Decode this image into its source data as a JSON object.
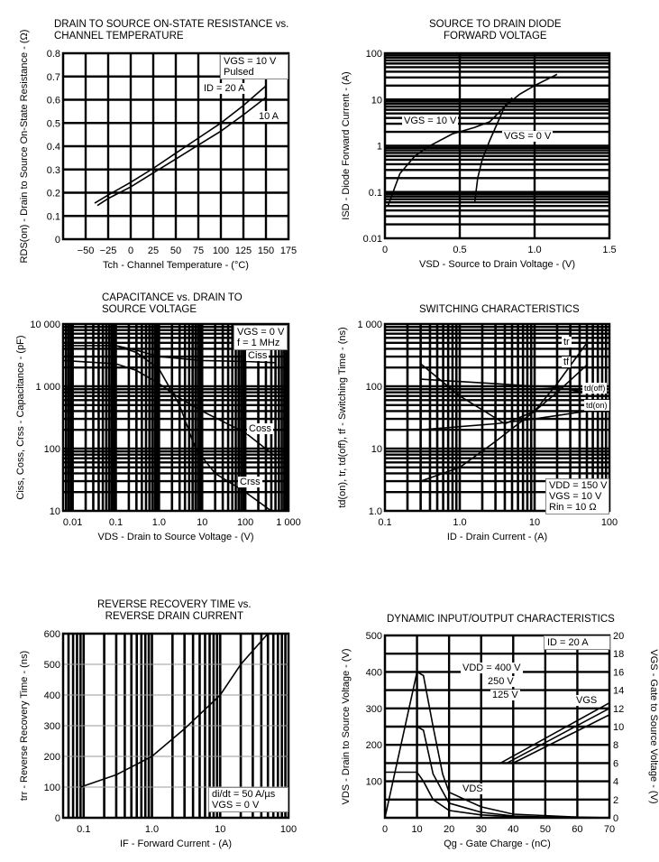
{
  "chart_data": [
    {
      "type": "line",
      "title": "DRAIN TO SOURCE ON-STATE RESISTANCE vs.\nCHANNEL TEMPERATURE",
      "xlabel": "Tch - Channel Temperature - (°C)",
      "ylabel": "RDS(on) - Drain to Source On-State Resistance - (Ω)",
      "xscale": "linear",
      "yscale": "linear",
      "xlim": [
        -75,
        175
      ],
      "ylim": [
        0,
        0.8
      ],
      "xticks": [
        -50,
        -25,
        0,
        25,
        50,
        75,
        100,
        125,
        150,
        175
      ],
      "xtick_labels": [
        "−50",
        "−25",
        "0",
        "25",
        "50",
        "75",
        "100",
        "125",
        "150",
        "175"
      ],
      "yticks": [
        0,
        0.1,
        0.2,
        0.3,
        0.4,
        0.5,
        0.6,
        0.7,
        0.8
      ],
      "ytick_labels": [
        "0",
        "0.1",
        "0.2",
        "0.3",
        "0.4",
        "0.5",
        "0.6",
        "0.7",
        "0.8"
      ],
      "grid": true,
      "annotations": [
        "VGS = 10 V\nPulsed",
        "ID = 20 A",
        "10 A"
      ],
      "series": [
        {
          "name": "ID = 20 A",
          "x": [
            -40,
            -25,
            0,
            25,
            50,
            75,
            100,
            125,
            150
          ],
          "y": [
            0.155,
            0.19,
            0.245,
            0.305,
            0.37,
            0.435,
            0.5,
            0.575,
            0.66
          ]
        },
        {
          "name": "10 A",
          "x": [
            -37,
            -25,
            0,
            25,
            50,
            75,
            100,
            125,
            150
          ],
          "y": [
            0.145,
            0.175,
            0.225,
            0.285,
            0.345,
            0.405,
            0.465,
            0.535,
            0.61
          ]
        }
      ]
    },
    {
      "type": "line",
      "title": "SOURCE TO DRAIN DIODE\nFORWARD VOLTAGE",
      "xlabel": "VSD - Source to Drain Voltage - (V)",
      "ylabel": "ISD - Diode Forward Current - (A)",
      "xscale": "linear",
      "yscale": "log",
      "xlim": [
        0,
        1.5
      ],
      "ylim": [
        0.01,
        100
      ],
      "xticks": [
        0,
        0.5,
        1.0,
        1.5
      ],
      "xtick_labels": [
        "0",
        "0.5",
        "1.0",
        "1.5"
      ],
      "yticks": [
        0.01,
        0.1,
        1,
        10,
        100
      ],
      "ytick_labels": [
        "0.01",
        "0.1",
        "1",
        "10",
        "100"
      ],
      "grid": true,
      "annotations": [
        "VGS = 10 V",
        "VGS = 0 V"
      ],
      "series": [
        {
          "name": "VGS = 10 V",
          "x": [
            0.02,
            0.1,
            0.2,
            0.3,
            0.45,
            0.6,
            0.7,
            0.8,
            0.9,
            1.0,
            1.15
          ],
          "y": [
            0.05,
            0.25,
            0.6,
            1.0,
            1.8,
            2.5,
            3.3,
            7,
            13,
            20,
            35
          ]
        },
        {
          "name": "VGS = 0 V",
          "x": [
            0.6,
            0.62,
            0.65,
            0.7,
            0.75,
            0.8,
            0.85
          ],
          "y": [
            0.06,
            0.2,
            0.5,
            1.3,
            3,
            7,
            11
          ]
        }
      ]
    },
    {
      "type": "line",
      "title": "CAPACITANCE vs. DRAIN TO\nSOURCE VOLTAGE",
      "xlabel": "VDS - Drain to Source Voltage - (V)",
      "ylabel": "Ciss, Coss, Crss - Capacitance - (pF)",
      "xscale": "log",
      "yscale": "log",
      "xlim": [
        0.006,
        1000
      ],
      "ylim": [
        10,
        10000
      ],
      "xticks": [
        0.01,
        0.1,
        1,
        10,
        100,
        1000
      ],
      "xtick_labels": [
        "0.01",
        "0.1",
        "1.0",
        "10",
        "100",
        "1 000"
      ],
      "yticks": [
        10,
        100,
        1000,
        10000
      ],
      "ytick_labels": [
        "10",
        "100",
        "1 000",
        "10 000"
      ],
      "grid": true,
      "annotations": [
        "VGS = 0 V\nf = 1 MHz",
        "Ciss",
        "Coss",
        "Crss"
      ],
      "series": [
        {
          "name": "Ciss",
          "x": [
            0.006,
            0.1,
            0.3,
            1,
            10,
            100,
            500
          ],
          "y": [
            4500,
            4500,
            3800,
            3000,
            2600,
            2500,
            2400
          ]
        },
        {
          "name": "Coss",
          "x": [
            0.006,
            0.1,
            0.3,
            1,
            3,
            10,
            100,
            500
          ],
          "y": [
            2600,
            2300,
            1800,
            1100,
            650,
            400,
            180,
            75
          ]
        },
        {
          "name": "Crss",
          "x": [
            0.1,
            0.3,
            1,
            3,
            7,
            20,
            100,
            400
          ],
          "y": [
            4500,
            3500,
            1900,
            500,
            100,
            40,
            20,
            10
          ]
        }
      ]
    },
    {
      "type": "line",
      "title": "SWITCHING CHARACTERISTICS",
      "xlabel": "ID - Drain Current - (A)",
      "ylabel": "td(on), tr, td(off), tf - Switching Time - (ns)",
      "xscale": "log",
      "yscale": "log",
      "xlim": [
        0.1,
        100
      ],
      "ylim": [
        1,
        1000
      ],
      "xticks": [
        0.1,
        1,
        10,
        100
      ],
      "xtick_labels": [
        "0.1",
        "1.0",
        "10",
        "100"
      ],
      "yticks": [
        1,
        10,
        100,
        1000
      ],
      "ytick_labels": [
        "1.0",
        "10",
        "100",
        "1 000"
      ],
      "grid": true,
      "annotations": [
        "tr",
        "tf",
        "td(off)",
        "td(on)",
        "VDD = 150 V\nVGS = 10 V\nRin = 10 Ω"
      ],
      "series": [
        {
          "name": "tr",
          "x": [
            0.3,
            1,
            3,
            10,
            20,
            50
          ],
          "y": [
            3,
            5,
            13,
            40,
            110,
            500
          ]
        },
        {
          "name": "tf",
          "x": [
            0.3,
            1,
            4,
            10,
            20,
            50
          ],
          "y": [
            230,
            70,
            25,
            40,
            80,
            220
          ]
        },
        {
          "name": "td(off)",
          "x": [
            0.3,
            3,
            20,
            50
          ],
          "y": [
            130,
            110,
            95,
            80
          ]
        },
        {
          "name": "td(on)",
          "x": [
            0.3,
            3,
            10,
            50
          ],
          "y": [
            20,
            25,
            30,
            40
          ]
        }
      ]
    },
    {
      "type": "line",
      "title": "REVERSE RECOVERY TIME vs.\nREVERSE DRAIN CURRENT",
      "xlabel": "IF - Forward Current - (A)",
      "ylabel": "trr - Reverse Recovery Time - (ns)",
      "xscale": "log",
      "yscale": "linear",
      "xlim": [
        0.05,
        100
      ],
      "ylim": [
        0,
        600
      ],
      "xticks": [
        0.1,
        1,
        10,
        100
      ],
      "xtick_labels": [
        "0.1",
        "1.0",
        "10",
        "100"
      ],
      "yticks": [
        0,
        100,
        200,
        300,
        400,
        500,
        600
      ],
      "ytick_labels": [
        "0",
        "100",
        "200",
        "300",
        "400",
        "500",
        "600"
      ],
      "grid": true,
      "annotations": [
        "di/dt = 50 A/µs\nVGS = 0 V"
      ],
      "series": [
        {
          "x": [
            0.09,
            0.3,
            1,
            3,
            10,
            20,
            50
          ],
          "y": [
            100,
            140,
            200,
            290,
            400,
            500,
            600
          ]
        }
      ]
    },
    {
      "type": "line",
      "title": "DYNAMIC INPUT/OUTPUT CHARACTERISTICS",
      "xlabel": "Qg - Gate Charge - (nC)",
      "ylabel": "VDS - Drain to Source Voltage - (V)",
      "ylabel_right": "VGS - Gate to Source Voltage - (V)",
      "xscale": "linear",
      "yscale": "linear",
      "xlim": [
        0,
        70
      ],
      "ylim": [
        0,
        500
      ],
      "ylim_right": [
        0,
        20
      ],
      "xticks": [
        0,
        10,
        20,
        30,
        40,
        50,
        60,
        70
      ],
      "xtick_labels": [
        "0",
        "10",
        "20",
        "30",
        "40",
        "50",
        "60",
        "70"
      ],
      "yticks": [
        100,
        200,
        300,
        400,
        500
      ],
      "ytick_labels": [
        "100",
        "200",
        "300",
        "400",
        "500"
      ],
      "yticks_right": [
        0,
        2,
        4,
        6,
        8,
        10,
        12,
        14,
        16,
        18,
        20
      ],
      "ytick_labels_right": [
        "0",
        "2",
        "4",
        "6",
        "8",
        "10",
        "12",
        "14",
        "16",
        "18",
        "20"
      ],
      "grid": true,
      "annotations": [
        "ID = 20 A",
        "VDD = 400 V",
        "250 V",
        "125 V",
        "VGS",
        "VDS"
      ],
      "series": [
        {
          "name": "VDS 400 V",
          "axis": "left",
          "x": [
            0,
            10,
            12,
            15,
            18,
            20,
            30,
            40,
            60,
            70
          ],
          "y": [
            0,
            400,
            390,
            250,
            120,
            70,
            30,
            10,
            2,
            0
          ]
        },
        {
          "name": "VDS 250 V",
          "axis": "left",
          "x": [
            10,
            12,
            15,
            20,
            30,
            40,
            60
          ],
          "y": [
            250,
            240,
            120,
            40,
            15,
            5,
            0
          ]
        },
        {
          "name": "VDS 125 V",
          "axis": "left",
          "x": [
            0,
            10,
            12,
            15,
            20,
            30,
            40,
            60
          ],
          "y": [
            125,
            125,
            100,
            50,
            20,
            8,
            3,
            0
          ]
        },
        {
          "name": "VGS 400 V",
          "axis": "right",
          "x": [
            36,
            70
          ],
          "y": [
            6,
            12.6
          ]
        },
        {
          "name": "VGS 250 V",
          "axis": "right",
          "x": [
            38,
            70
          ],
          "y": [
            6,
            12
          ]
        },
        {
          "name": "VGS 125 V",
          "axis": "right",
          "x": [
            40,
            70
          ],
          "y": [
            6,
            11.3
          ]
        }
      ]
    }
  ]
}
